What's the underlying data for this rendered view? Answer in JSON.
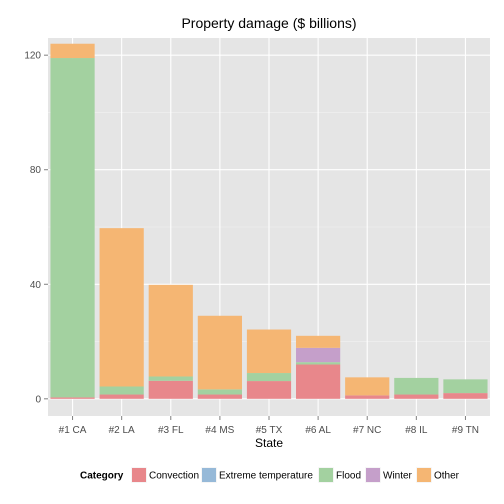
{
  "chart_data": {
    "type": "bar",
    "stacked": true,
    "title": "Property damage ($ billions)",
    "xlabel": "State",
    "ylabel": "",
    "categories": [
      "#1 CA",
      "#2 LA",
      "#3 FL",
      "#4 MS",
      "#5 TX",
      "#6 AL",
      "#7 NC",
      "#8 IL",
      "#9 TN"
    ],
    "ylim": [
      -6,
      126
    ],
    "yticks": [
      0,
      40,
      80,
      120
    ],
    "grid": true,
    "legend_position": "bottom",
    "legend_title": "Category",
    "series": [
      {
        "name": "Convection",
        "color": "#e8878b",
        "values": [
          0.5,
          1.5,
          6.3,
          1.5,
          6.2,
          12.0,
          1.2,
          1.5,
          2.0
        ]
      },
      {
        "name": "Extreme temperature",
        "color": "#96b9d8",
        "values": [
          0,
          0,
          0,
          0,
          0,
          0,
          0,
          0,
          0
        ]
      },
      {
        "name": "Flood",
        "color": "#a3d1a0",
        "values": [
          118.5,
          2.8,
          1.5,
          1.8,
          2.8,
          0.8,
          0,
          5.8,
          4.8
        ]
      },
      {
        "name": "Winter",
        "color": "#c59fca",
        "values": [
          0,
          0,
          0,
          0,
          0,
          5.0,
          0,
          0,
          0
        ]
      },
      {
        "name": "Other",
        "color": "#f5b673",
        "values": [
          5.0,
          55.3,
          32.0,
          25.7,
          15.2,
          4.2,
          6.3,
          0,
          0
        ]
      }
    ]
  }
}
